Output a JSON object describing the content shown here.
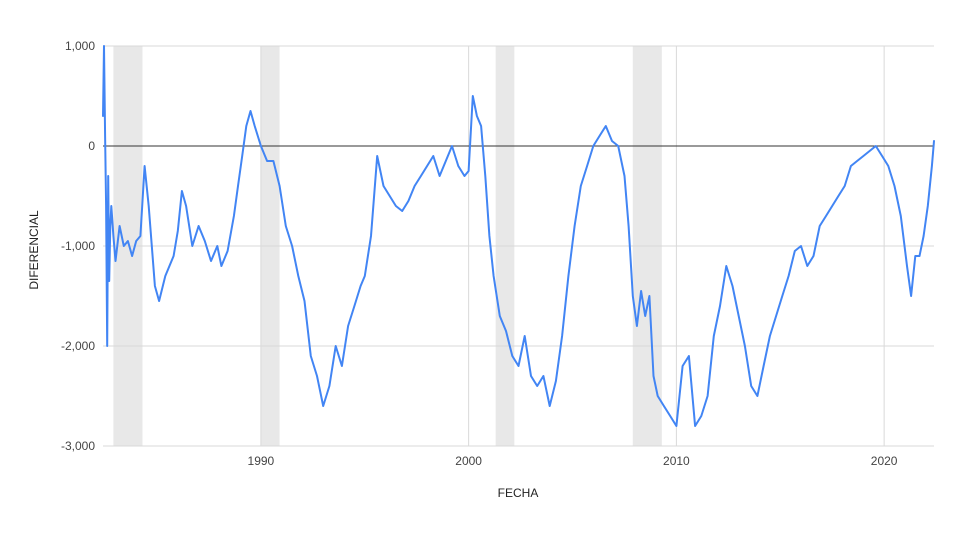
{
  "chart_data": {
    "type": "line",
    "title": "",
    "xlabel": "FECHA",
    "ylabel": "DIFERENCIAL",
    "xlim": [
      1982.4,
      2022.4
    ],
    "ylim": [
      -3000,
      1000
    ],
    "x_ticks": [
      {
        "value": 1990,
        "label": "1990"
      },
      {
        "value": 2000,
        "label": "2000"
      },
      {
        "value": 2010,
        "label": "2010"
      },
      {
        "value": 2020,
        "label": "2020"
      }
    ],
    "y_ticks": [
      {
        "value": 1000,
        "label": "1,000"
      },
      {
        "value": 0,
        "label": "0"
      },
      {
        "value": -1000,
        "label": "-1,000"
      },
      {
        "value": -2000,
        "label": "-2,000"
      },
      {
        "value": -3000,
        "label": "-3,000"
      }
    ],
    "grid": true,
    "zero_line": true,
    "recession_bands": [
      [
        1982.9,
        1984.3
      ],
      [
        1990.0,
        1990.9
      ],
      [
        2001.3,
        2002.2
      ],
      [
        2007.9,
        2009.3
      ]
    ],
    "series": [
      {
        "color": "#4285f4",
        "x": [
          1982.4,
          1982.45,
          1982.5,
          1982.55,
          1982.6,
          1982.65,
          1982.7,
          1982.75,
          1982.8,
          1982.9,
          1983.0,
          1983.2,
          1983.4,
          1983.6,
          1983.8,
          1984.0,
          1984.2,
          1984.4,
          1984.6,
          1984.9,
          1985.1,
          1985.4,
          1985.8,
          1986.0,
          1986.2,
          1986.4,
          1986.7,
          1987.0,
          1987.3,
          1987.6,
          1987.9,
          1988.1,
          1988.4,
          1988.7,
          1988.9,
          1989.1,
          1989.3,
          1989.5,
          1989.7,
          1990.0,
          1990.3,
          1990.6,
          1990.9,
          1991.2,
          1991.5,
          1991.8,
          1992.1,
          1992.4,
          1992.7,
          1993.0,
          1993.3,
          1993.6,
          1993.9,
          1994.2,
          1994.5,
          1994.8,
          1995.0,
          1995.3,
          1995.6,
          1995.9,
          1996.2,
          1996.5,
          1996.8,
          1997.1,
          1997.4,
          1997.7,
          1998.0,
          1998.3,
          1998.6,
          1998.9,
          1999.2,
          1999.5,
          1999.8,
          2000.0,
          2000.2,
          2000.4,
          2000.6,
          2000.8,
          2001.0,
          2001.2,
          2001.5,
          2001.8,
          2002.1,
          2002.4,
          2002.7,
          2003.0,
          2003.3,
          2003.6,
          2003.9,
          2004.2,
          2004.5,
          2004.8,
          2005.1,
          2005.4,
          2005.7,
          2006.0,
          2006.3,
          2006.6,
          2006.9,
          2007.2,
          2007.5,
          2007.7,
          2007.9,
          2008.1,
          2008.3,
          2008.5,
          2008.7,
          2008.9,
          2009.1,
          2009.4,
          2009.7,
          2010.0,
          2010.3,
          2010.6,
          2010.9,
          2011.2,
          2011.5,
          2011.8,
          2012.1,
          2012.4,
          2012.7,
          2013.0,
          2013.3,
          2013.6,
          2013.9,
          2014.2,
          2014.5,
          2014.8,
          2015.1,
          2015.4,
          2015.7,
          2016.0,
          2016.3,
          2016.6,
          2016.9,
          2017.2,
          2017.5,
          2017.8,
          2018.1,
          2018.4,
          2018.7,
          2019.0,
          2019.3,
          2019.6,
          2019.9,
          2020.2,
          2020.5,
          2020.8,
          2021.1,
          2021.3,
          2021.5,
          2021.7,
          2021.9,
          2022.1,
          2022.3,
          2022.4
        ],
        "values": [
          300,
          1000,
          100,
          -600,
          -2000,
          -300,
          -1350,
          -800,
          -600,
          -900,
          -1150,
          -800,
          -1000,
          -950,
          -1100,
          -950,
          -900,
          -200,
          -600,
          -1400,
          -1550,
          -1300,
          -1100,
          -850,
          -450,
          -600,
          -1000,
          -800,
          -950,
          -1150,
          -1000,
          -1200,
          -1050,
          -700,
          -400,
          -100,
          200,
          350,
          200,
          0,
          -150,
          -150,
          -400,
          -800,
          -1000,
          -1300,
          -1550,
          -2100,
          -2300,
          -2600,
          -2400,
          -2000,
          -2200,
          -1800,
          -1600,
          -1400,
          -1300,
          -900,
          -100,
          -400,
          -500,
          -600,
          -650,
          -550,
          -400,
          -300,
          -200,
          -100,
          -300,
          -150,
          0,
          -200,
          -300,
          -250,
          500,
          300,
          200,
          -300,
          -900,
          -1300,
          -1700,
          -1850,
          -2100,
          -2200,
          -1900,
          -2300,
          -2400,
          -2300,
          -2600,
          -2350,
          -1900,
          -1300,
          -800,
          -400,
          -200,
          0,
          100,
          200,
          50,
          0,
          -300,
          -800,
          -1500,
          -1800,
          -1450,
          -1700,
          -1500,
          -2300,
          -2500,
          -2600,
          -2700,
          -2800,
          -2200,
          -2100,
          -2800,
          -2700,
          -2500,
          -1900,
          -1600,
          -1200,
          -1400,
          -1700,
          -2000,
          -2400,
          -2500,
          -2200,
          -1900,
          -1700,
          -1500,
          -1300,
          -1050,
          -1000,
          -1200,
          -1100,
          -800,
          -700,
          -600,
          -500,
          -400,
          -200,
          -150,
          -100,
          -50,
          0,
          -100,
          -200,
          -400,
          -700,
          -1200,
          -1500,
          -1100,
          -1100,
          -900,
          -600,
          -200,
          50
        ]
      }
    ]
  }
}
